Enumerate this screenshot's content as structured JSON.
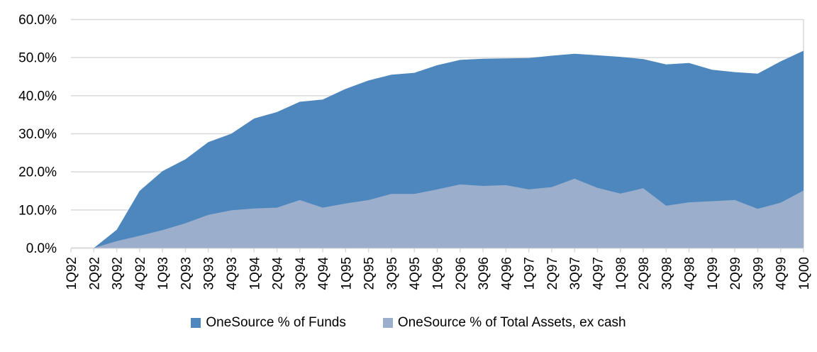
{
  "chart_data": {
    "type": "area",
    "mode": "overlapping",
    "title": "",
    "categories": [
      "1Q92",
      "2Q92",
      "3Q92",
      "4Q92",
      "1Q93",
      "2Q93",
      "3Q93",
      "4Q93",
      "1Q94",
      "2Q94",
      "3Q94",
      "4Q94",
      "1Q95",
      "2Q95",
      "3Q95",
      "4Q95",
      "1Q96",
      "2Q96",
      "3Q96",
      "4Q96",
      "1Q97",
      "2Q97",
      "3Q97",
      "4Q97",
      "1Q98",
      "2Q98",
      "3Q98",
      "4Q98",
      "1Q99",
      "2Q99",
      "3Q99",
      "4Q99",
      "1Q00"
    ],
    "series": [
      {
        "name": "OneSource % of Funds",
        "color": "#4E87BD",
        "values": [
          0.0,
          0.0,
          4.8,
          15.0,
          20.2,
          23.3,
          27.8,
          30.0,
          34.0,
          35.7,
          38.4,
          39.0,
          41.8,
          44.0,
          45.5,
          46.0,
          48.0,
          49.4,
          49.7,
          49.8,
          49.9,
          50.5,
          51.0,
          50.6,
          50.2,
          49.6,
          48.2,
          48.6,
          46.8,
          46.2,
          45.8,
          49.0,
          51.8
        ]
      },
      {
        "name": "OneSource % of Total Assets, ex cash",
        "color": "#9BAFCC",
        "values": [
          0.0,
          0.0,
          1.8,
          3.2,
          4.7,
          6.5,
          8.7,
          9.9,
          10.4,
          10.6,
          12.6,
          10.6,
          11.7,
          12.6,
          14.2,
          14.2,
          15.4,
          16.7,
          16.3,
          16.5,
          15.4,
          16.0,
          18.2,
          15.8,
          14.3,
          15.7,
          11.1,
          12.0,
          12.3,
          12.6,
          10.3,
          11.9,
          15.1
        ]
      }
    ],
    "y_axis": {
      "ticks": [
        "0.0%",
        "10.0%",
        "20.0%",
        "30.0%",
        "40.0%",
        "50.0%",
        "60.0%"
      ],
      "min": 0,
      "max": 60
    },
    "x_axis": {
      "label_rotation": -90
    },
    "grid": true,
    "legend_position": "bottom",
    "gridline_color": "#D9D9D9",
    "axis_text_color": "#000000"
  }
}
